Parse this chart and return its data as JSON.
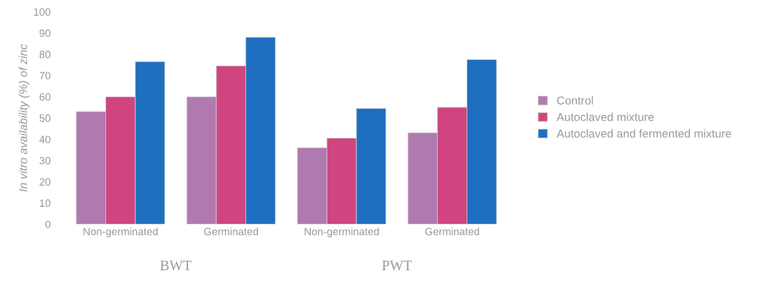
{
  "chart_data": {
    "type": "bar",
    "categories": [
      "Non-germinated",
      "Germinated",
      "Non-germinated",
      "Germinated"
    ],
    "ylabel": "In vitro availability (%) of zinc",
    "series": [
      {
        "name": "Control",
        "color": "#b07ab0",
        "values": [
          53,
          60,
          36,
          43
        ]
      },
      {
        "name": "Autoclaved mixture",
        "color": "#d0457f",
        "values": [
          60,
          74.5,
          40.5,
          55
        ]
      },
      {
        "name": "Autoclaved and fermented mixture",
        "color": "#1f6fc0",
        "values": [
          76.5,
          88,
          54.5,
          77.5
        ]
      }
    ],
    "ylim": [
      0,
      100
    ],
    "yticks": [
      0,
      10,
      20,
      30,
      40,
      50,
      60,
      70,
      80,
      90,
      100
    ],
    "annotations": [
      "BWT",
      "PWT"
    ],
    "legend": "right",
    "grid": false
  }
}
